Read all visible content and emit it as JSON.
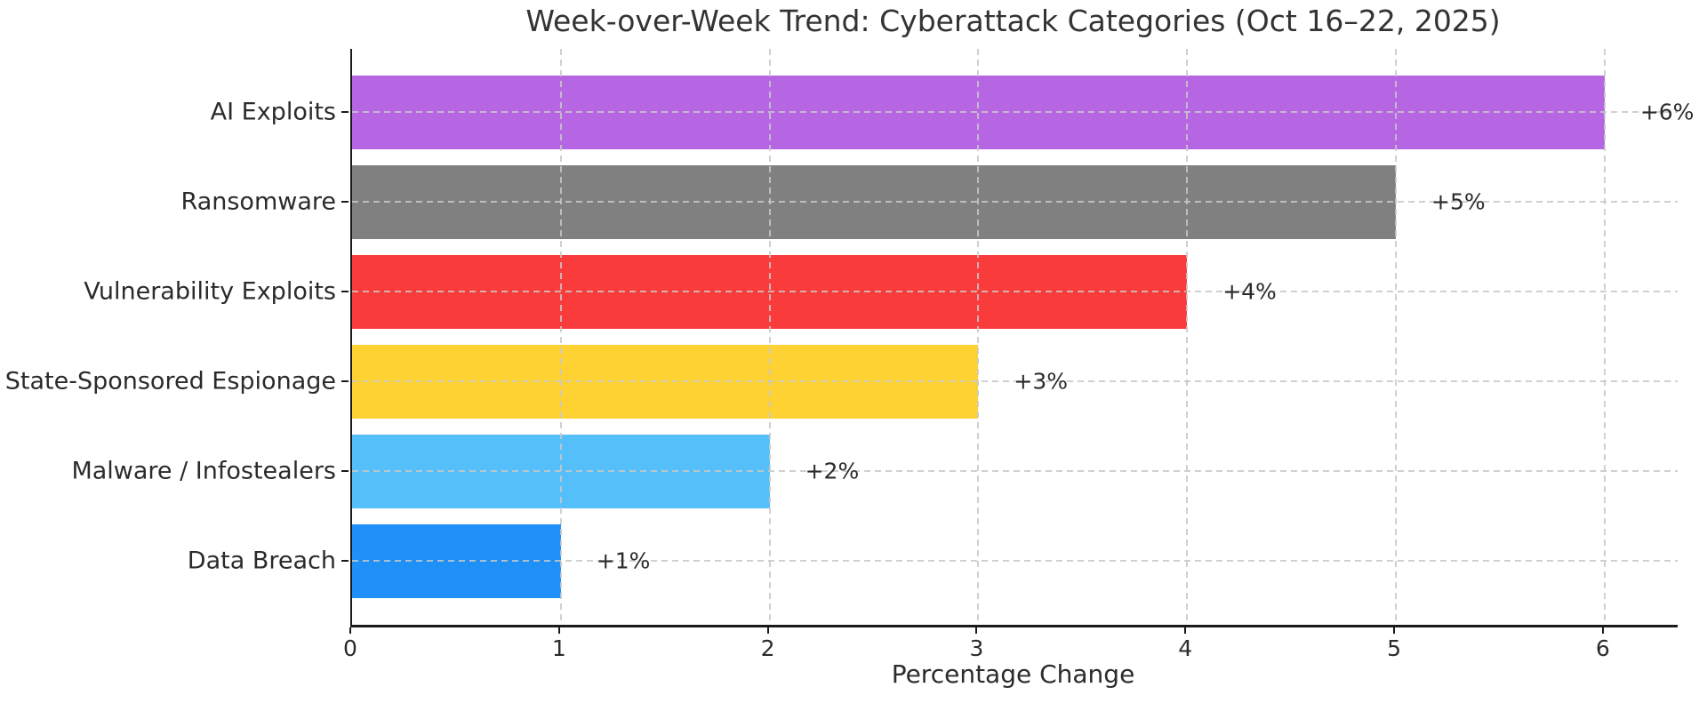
{
  "chart_data": {
    "type": "bar",
    "orientation": "horizontal",
    "title": "Week-over-Week Trend: Cyberattack Categories (Oct 16–22, 2025)",
    "xlabel": "Percentage Change",
    "ylabel": "",
    "categories": [
      "AI Exploits",
      "Ransomware",
      "Vulnerability Exploits",
      "State-Sponsored Espionage",
      "Malware / Infostealers",
      "Data Breach"
    ],
    "values": [
      6,
      5,
      4,
      3,
      2,
      1
    ],
    "bar_labels": [
      "+6%",
      "+5%",
      "+4%",
      "+3%",
      "+2%",
      "+1%"
    ],
    "bar_colors": [
      "#b666e3",
      "#808080",
      "#fa3b3b",
      "#ffd234",
      "#55bffa",
      "#1e90f7"
    ],
    "x_ticks": [
      "0",
      "1",
      "2",
      "3",
      "4",
      "5",
      "6"
    ],
    "x_tick_values": [
      0,
      1,
      2,
      3,
      4,
      5,
      6
    ],
    "xlim": [
      0,
      6.35
    ],
    "legend": "none",
    "grid": "dashed gridlines on both axes, drawn above bars",
    "grid_color": "#cccccc",
    "background_color": "#ffffff",
    "text_color": "#2b2b2b",
    "spine_color": "#1a1a1a"
  }
}
